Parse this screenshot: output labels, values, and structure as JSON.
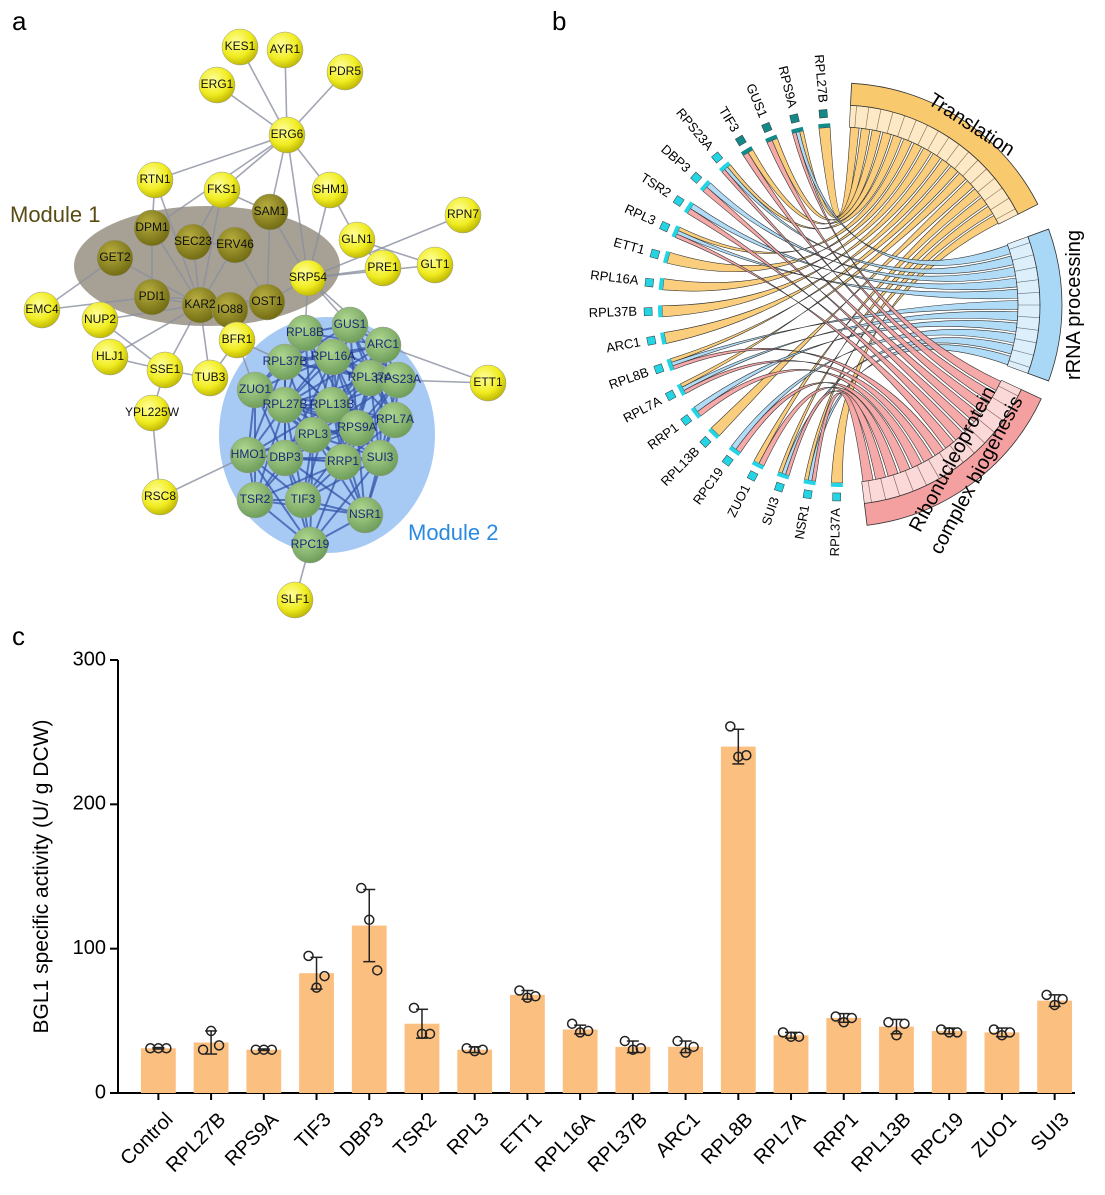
{
  "panel_labels": [
    "a",
    "b",
    "c"
  ],
  "network": {
    "modules": [
      "Module 1",
      "Module 2"
    ],
    "nodes": [
      "KES1",
      "AYR1",
      "PDR5",
      "ERG1",
      "ERG6",
      "RTN1",
      "FKS1",
      "SHM1",
      "RPN7",
      "DPM1",
      "SEC23",
      "ERV46",
      "SAM1",
      "GLN1",
      "GLT1",
      "GET2",
      "PRE1",
      "SRP54",
      "EMC4",
      "PDI1",
      "KAR2",
      "IO88",
      "OST1",
      "NUP2",
      "GUS1",
      "RPL8B",
      "ARC1",
      "BFR1",
      "RPL16A",
      "HLJ1",
      "RPL37B",
      "SSE1",
      "TUB3",
      "RPL37A",
      "RPS23A",
      "ETT1",
      "ZUO1",
      "RPL27B",
      "RPL13B",
      "YPL225W",
      "RPS9A",
      "RPL7A",
      "RPL3",
      "HMO1",
      "DBP3",
      "RRP1",
      "SUI3",
      "RSC8",
      "TSR2",
      "TIF3",
      "NSR1",
      "RPC19",
      "SLF1"
    ]
  },
  "chord": {
    "genes": [
      "RPL27B",
      "RPS9A",
      "GUS1",
      "TIF3",
      "RPS23A",
      "DBP3",
      "TSR2",
      "RPL3",
      "ETT1",
      "RPL16A",
      "RPL37B",
      "ARC1",
      "RPL8B",
      "RPL7A",
      "RRP1",
      "RPL13B",
      "RPC19",
      "ZUO1",
      "SUI3",
      "NSR1",
      "RPL37A"
    ],
    "terms": [
      [
        "Translation"
      ],
      [
        "rRNA processing"
      ],
      [
        "Ribonucleoprotein",
        "complex biogenesis"
      ]
    ]
  },
  "chart_data": {
    "type": "bar",
    "ylabel": "BGL1 specific activity (U/ g DCW)",
    "categories": [
      "Control",
      "RPL27B",
      "RPS9A",
      "TIF3",
      "DBP3",
      "TSR2",
      "RPL3",
      "ETT1",
      "RPL16A",
      "RPL37B",
      "ARC1",
      "RPL8B",
      "RPL7A",
      "RRP1",
      "RPL13B",
      "RPC19",
      "ZUO1",
      "SUI3"
    ],
    "values": [
      31,
      35,
      30,
      83,
      116,
      48,
      30,
      68,
      44,
      32,
      32,
      240,
      40,
      52,
      46,
      43,
      42,
      64
    ],
    "errors": [
      0.5,
      8,
      0.5,
      11,
      25,
      10,
      2,
      3,
      3,
      4,
      4,
      12,
      2,
      3,
      5,
      2,
      3,
      4
    ],
    "points": [
      [
        31,
        31,
        31
      ],
      [
        30,
        43,
        33
      ],
      [
        30,
        30,
        30
      ],
      [
        95,
        73,
        81
      ],
      [
        142,
        120,
        85
      ],
      [
        59,
        41,
        41
      ],
      [
        31,
        29,
        30
      ],
      [
        71,
        66,
        67
      ],
      [
        48,
        42,
        43
      ],
      [
        36,
        30,
        31
      ],
      [
        36,
        28,
        32
      ],
      [
        254,
        233,
        234
      ],
      [
        42,
        39,
        39
      ],
      [
        53,
        49,
        52
      ],
      [
        49,
        40,
        48
      ],
      [
        44,
        42,
        42
      ],
      [
        44,
        40,
        42
      ],
      [
        68,
        61,
        65
      ]
    ],
    "color": "#fbbf7f",
    "ylim": [
      0,
      300
    ],
    "yticks": [
      0,
      100,
      200,
      300
    ]
  }
}
